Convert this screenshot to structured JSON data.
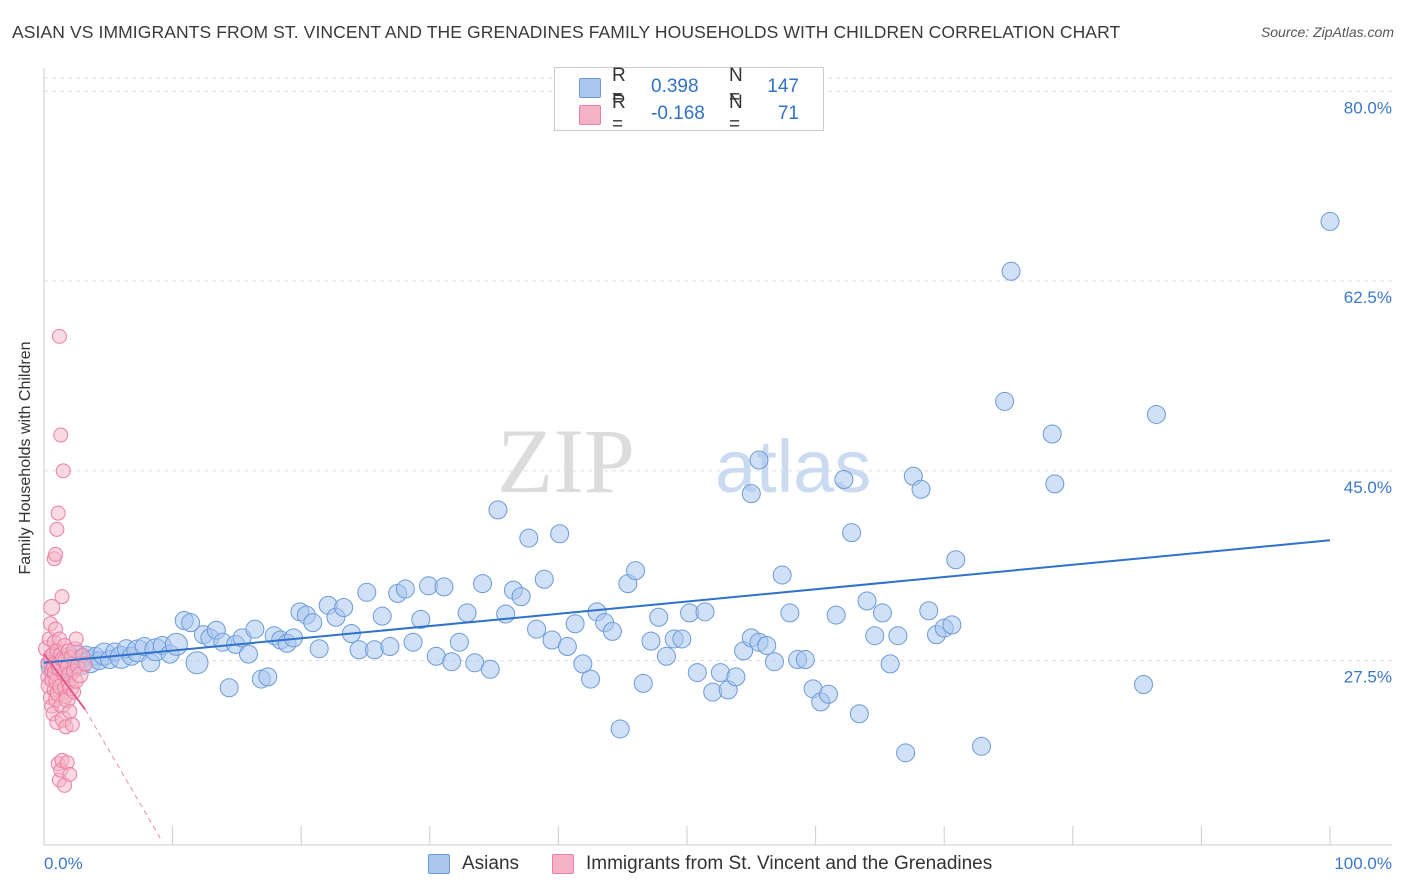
{
  "title": "ASIAN VS IMMIGRANTS FROM ST. VINCENT AND THE GRENADINES FAMILY HOUSEHOLDS WITH CHILDREN CORRELATION CHART",
  "source": "Source: ZipAtlas.com",
  "watermark": {
    "zip": "ZIP",
    "atlas": "atlas"
  },
  "legend": {
    "rows": [
      {
        "r_label": "R =",
        "r_value": "0.398",
        "n_label": "N =",
        "n_value": "147",
        "color": "#a9c6ef"
      },
      {
        "r_label": "R =",
        "r_value": "-0.168",
        "n_label": "N =",
        "n_value": "71",
        "color": "#f6b3c8"
      }
    ]
  },
  "bottom_legend": {
    "asians": "Asians",
    "immigrants": "Immigrants from St. Vincent and the Grenadines"
  },
  "colors": {
    "blue_fill": "#a9c6ef",
    "blue_stroke": "#6c9bd8",
    "blue_line": "#2f72c9",
    "pink_fill": "#f6b3c8",
    "pink_stroke": "#ea7fa2",
    "pink_line": "#e05b87",
    "axis_text": "#3a78c9",
    "grid": "#dddddd"
  },
  "chart_data": {
    "type": "scatter",
    "title": "ASIAN VS IMMIGRANTS FROM ST. VINCENT AND THE GRENADINES FAMILY HOUSEHOLDS WITH CHILDREN CORRELATION CHART",
    "xlabel": "",
    "ylabel": "Family Households with Children",
    "xlim": [
      0,
      100
    ],
    "ylim": [
      10.5,
      81.5
    ],
    "x_tick_labels": [
      "0.0%",
      "100.0%"
    ],
    "y_ticks": [
      27.5,
      45.0,
      62.5,
      80.0
    ],
    "y_tick_labels": [
      "27.5%",
      "45.0%",
      "62.5%",
      "80.0%"
    ],
    "grid": true,
    "legend_position": "top-center",
    "series": [
      {
        "name": "Asians",
        "R": 0.398,
        "N": 147,
        "trend": {
          "x": [
            0,
            100
          ],
          "y": [
            27.3,
            38.6
          ],
          "style": "solid"
        },
        "points": [
          [
            0.7,
            27.0
          ],
          [
            0.9,
            27.4
          ],
          [
            1.1,
            26.8
          ],
          [
            1.3,
            27.5
          ],
          [
            1.5,
            27.2
          ],
          [
            1.7,
            26.9
          ],
          [
            2.0,
            27.6
          ],
          [
            2.2,
            27.1
          ],
          [
            2.5,
            27.8
          ],
          [
            2.8,
            27.3
          ],
          [
            3.0,
            27.7
          ],
          [
            3.3,
            28.0
          ],
          [
            3.6,
            27.4
          ],
          [
            4.0,
            27.9
          ],
          [
            4.3,
            27.5
          ],
          [
            4.7,
            28.1
          ],
          [
            5.1,
            27.6
          ],
          [
            5.5,
            28.3
          ],
          [
            6.0,
            27.8
          ],
          [
            6.4,
            28.6
          ],
          [
            6.8,
            27.9
          ],
          [
            7.3,
            28.4
          ],
          [
            7.8,
            28.8
          ],
          [
            8.3,
            27.3
          ],
          [
            8.7,
            28.5
          ],
          [
            9.2,
            28.9
          ],
          [
            9.8,
            28.1
          ],
          [
            10.3,
            29.0
          ],
          [
            10.9,
            31.2
          ],
          [
            11.4,
            31.0
          ],
          [
            11.9,
            27.3
          ],
          [
            12.4,
            29.9
          ],
          [
            12.9,
            29.6
          ],
          [
            13.4,
            30.3
          ],
          [
            13.9,
            29.2
          ],
          [
            14.4,
            25.0
          ],
          [
            14.9,
            29.0
          ],
          [
            15.4,
            29.6
          ],
          [
            15.9,
            28.1
          ],
          [
            16.4,
            30.4
          ],
          [
            16.9,
            25.8
          ],
          [
            17.4,
            26.0
          ],
          [
            17.9,
            29.8
          ],
          [
            18.4,
            29.4
          ],
          [
            18.9,
            29.1
          ],
          [
            19.4,
            29.6
          ],
          [
            19.9,
            32.0
          ],
          [
            20.4,
            31.7
          ],
          [
            20.9,
            31.0
          ],
          [
            21.4,
            28.6
          ],
          [
            22.1,
            32.6
          ],
          [
            22.7,
            31.5
          ],
          [
            23.3,
            32.4
          ],
          [
            23.9,
            30.0
          ],
          [
            24.5,
            28.5
          ],
          [
            25.1,
            33.8
          ],
          [
            25.7,
            28.5
          ],
          [
            26.3,
            31.6
          ],
          [
            26.9,
            28.8
          ],
          [
            27.5,
            33.7
          ],
          [
            28.1,
            34.1
          ],
          [
            28.7,
            29.2
          ],
          [
            29.3,
            31.3
          ],
          [
            29.9,
            34.4
          ],
          [
            30.5,
            27.9
          ],
          [
            31.1,
            34.3
          ],
          [
            31.7,
            27.4
          ],
          [
            32.3,
            29.2
          ],
          [
            32.9,
            31.9
          ],
          [
            33.5,
            27.3
          ],
          [
            34.1,
            34.6
          ],
          [
            34.7,
            26.7
          ],
          [
            35.3,
            41.4
          ],
          [
            35.9,
            31.8
          ],
          [
            36.5,
            34.0
          ],
          [
            37.1,
            33.4
          ],
          [
            37.7,
            38.8
          ],
          [
            38.3,
            30.4
          ],
          [
            38.9,
            35.0
          ],
          [
            39.5,
            29.4
          ],
          [
            40.1,
            39.2
          ],
          [
            40.7,
            28.8
          ],
          [
            41.3,
            30.9
          ],
          [
            41.9,
            27.2
          ],
          [
            42.5,
            25.8
          ],
          [
            43.0,
            32.0
          ],
          [
            43.6,
            31.0
          ],
          [
            44.2,
            30.2
          ],
          [
            44.8,
            21.2
          ],
          [
            45.4,
            34.6
          ],
          [
            46.0,
            35.8
          ],
          [
            46.6,
            25.4
          ],
          [
            47.2,
            29.3
          ],
          [
            47.8,
            31.5
          ],
          [
            48.4,
            27.9
          ],
          [
            49.0,
            29.5
          ],
          [
            49.6,
            29.5
          ],
          [
            50.2,
            31.9
          ],
          [
            50.8,
            26.4
          ],
          [
            51.4,
            32.0
          ],
          [
            52.0,
            24.6
          ],
          [
            52.6,
            26.4
          ],
          [
            53.2,
            24.8
          ],
          [
            53.8,
            26.0
          ],
          [
            54.4,
            28.4
          ],
          [
            55.0,
            42.9
          ],
          [
            55.6,
            46.0
          ],
          [
            55.0,
            29.6
          ],
          [
            55.6,
            29.2
          ],
          [
            56.2,
            28.9
          ],
          [
            56.8,
            27.4
          ],
          [
            57.4,
            35.4
          ],
          [
            58.0,
            31.9
          ],
          [
            58.6,
            27.6
          ],
          [
            59.2,
            27.6
          ],
          [
            59.8,
            24.9
          ],
          [
            60.4,
            23.7
          ],
          [
            61.0,
            24.4
          ],
          [
            61.6,
            31.7
          ],
          [
            62.2,
            44.2
          ],
          [
            62.8,
            39.3
          ],
          [
            63.4,
            22.6
          ],
          [
            64.0,
            33.0
          ],
          [
            64.6,
            29.8
          ],
          [
            65.2,
            31.9
          ],
          [
            65.8,
            27.2
          ],
          [
            66.4,
            29.8
          ],
          [
            67.0,
            19.0
          ],
          [
            67.6,
            44.5
          ],
          [
            68.2,
            43.3
          ],
          [
            68.8,
            32.1
          ],
          [
            69.4,
            29.9
          ],
          [
            70.0,
            30.5
          ],
          [
            70.6,
            30.8
          ],
          [
            70.9,
            36.8
          ],
          [
            72.9,
            19.6
          ],
          [
            74.7,
            51.4
          ],
          [
            75.2,
            63.4
          ],
          [
            78.4,
            48.4
          ],
          [
            78.6,
            43.8
          ],
          [
            85.5,
            25.3
          ],
          [
            86.5,
            50.2
          ],
          [
            100,
            68.0
          ]
        ],
        "point_sizes": "mixed"
      },
      {
        "name": "Immigrants from St. Vincent and the Grenadines",
        "R": -0.168,
        "N": 71,
        "trend": {
          "x": [
            0,
            3.2
          ],
          "y": [
            28.1,
            23.0
          ],
          "x_dashed_end": 9.1,
          "y_dashed_end": 11.0,
          "style": "solid then dashed"
        },
        "points": [
          [
            0.2,
            28.6
          ],
          [
            0.3,
            27.3
          ],
          [
            0.3,
            26.0
          ],
          [
            0.4,
            29.5
          ],
          [
            0.4,
            25.2
          ],
          [
            0.5,
            30.9
          ],
          [
            0.5,
            27.9
          ],
          [
            0.5,
            24.1
          ],
          [
            0.6,
            32.4
          ],
          [
            0.6,
            26.6
          ],
          [
            0.6,
            23.3
          ],
          [
            0.7,
            28.1
          ],
          [
            0.7,
            25.7
          ],
          [
            0.7,
            22.6
          ],
          [
            0.8,
            36.9
          ],
          [
            0.8,
            29.2
          ],
          [
            0.8,
            27.1
          ],
          [
            0.8,
            24.8
          ],
          [
            0.9,
            37.3
          ],
          [
            0.9,
            30.4
          ],
          [
            0.9,
            26.4
          ],
          [
            0.9,
            23.9
          ],
          [
            1.0,
            39.6
          ],
          [
            1.0,
            28.4
          ],
          [
            1.0,
            25.6
          ],
          [
            1.0,
            21.8
          ],
          [
            1.1,
            41.1
          ],
          [
            1.1,
            27.2
          ],
          [
            1.1,
            24.5
          ],
          [
            1.1,
            18.0
          ],
          [
            1.2,
            57.4
          ],
          [
            1.2,
            29.5
          ],
          [
            1.2,
            26.8
          ],
          [
            1.2,
            16.5
          ],
          [
            1.3,
            48.3
          ],
          [
            1.3,
            28.1
          ],
          [
            1.3,
            25.1
          ],
          [
            1.3,
            17.4
          ],
          [
            1.4,
            33.4
          ],
          [
            1.4,
            27.6
          ],
          [
            1.4,
            23.4
          ],
          [
            1.4,
            18.3
          ],
          [
            1.5,
            45.0
          ],
          [
            1.5,
            26.3
          ],
          [
            1.5,
            22.1
          ],
          [
            1.6,
            28.9
          ],
          [
            1.6,
            25.0
          ],
          [
            1.6,
            16.0
          ],
          [
            1.7,
            27.5
          ],
          [
            1.7,
            24.2
          ],
          [
            1.7,
            21.4
          ],
          [
            1.8,
            26.9
          ],
          [
            1.8,
            23.9
          ],
          [
            1.8,
            18.1
          ],
          [
            1.9,
            28.4
          ],
          [
            1.9,
            25.4
          ],
          [
            2.0,
            26.2
          ],
          [
            2.0,
            22.8
          ],
          [
            2.0,
            17.0
          ],
          [
            2.1,
            27.8
          ],
          [
            2.1,
            25.0
          ],
          [
            2.2,
            21.6
          ],
          [
            2.3,
            26.5
          ],
          [
            2.3,
            24.6
          ],
          [
            2.4,
            28.5
          ],
          [
            2.5,
            25.6
          ],
          [
            2.5,
            29.5
          ],
          [
            2.6,
            27.0
          ],
          [
            2.8,
            26.2
          ],
          [
            3.0,
            28.0
          ],
          [
            3.2,
            27.2
          ]
        ]
      }
    ]
  }
}
